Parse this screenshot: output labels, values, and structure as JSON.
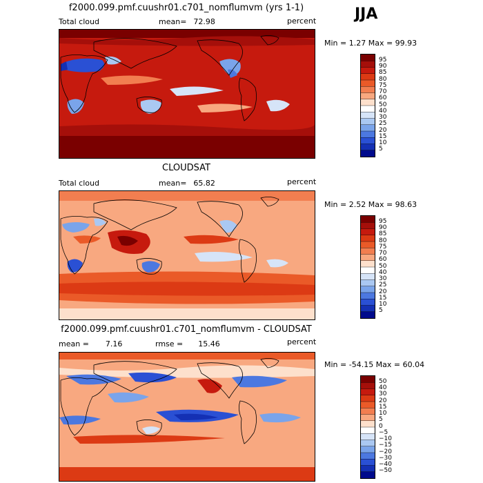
{
  "season": "JJA",
  "panels": [
    {
      "title": "f2000.099.pmf.cuushr01.c701_nomflumvm (yrs 1-1)",
      "left_label": "Total cloud",
      "stat_label": "mean=",
      "stat_value": "72.98",
      "units": "percent",
      "minmax": "Min =    1.27 Max =   99.93",
      "colorbar_labels": [
        "95",
        "90",
        "85",
        "80",
        "75",
        "70",
        "60",
        "50",
        "40",
        "30",
        "25",
        "20",
        "15",
        "10",
        "5"
      ],
      "colorbar_colors": [
        "#7a0000",
        "#a50f0a",
        "#c61a0e",
        "#dc3a14",
        "#ea5a28",
        "#f27e50",
        "#f8a880",
        "#fde0cc",
        "#ffffff",
        "#d6e4f8",
        "#aac8f2",
        "#7aa4ea",
        "#4c78e0",
        "#2a50d4",
        "#1430b4",
        "#000a8c"
      ]
    },
    {
      "title": "CLOUDSAT",
      "left_label": "Total cloud",
      "stat_label": "mean=",
      "stat_value": "65.82",
      "units": "percent",
      "minmax": "Min =    2.52 Max =   98.63",
      "colorbar_labels": [
        "95",
        "90",
        "85",
        "80",
        "75",
        "70",
        "60",
        "50",
        "40",
        "30",
        "25",
        "20",
        "15",
        "10",
        "5"
      ],
      "colorbar_colors": [
        "#7a0000",
        "#a50f0a",
        "#c61a0e",
        "#dc3a14",
        "#ea5a28",
        "#f27e50",
        "#f8a880",
        "#fde0cc",
        "#ffffff",
        "#d6e4f8",
        "#aac8f2",
        "#7aa4ea",
        "#4c78e0",
        "#2a50d4",
        "#1430b4",
        "#000a8c"
      ]
    },
    {
      "title": "f2000.099.pmf.cuushr01.c701_nomflumvm - CLOUDSAT",
      "left_label": "mean =",
      "left_value": "7.16",
      "stat_label": "rmse =",
      "stat_value": "15.46",
      "units": "percent",
      "minmax": "Min = -54.15 Max =   60.04",
      "colorbar_labels": [
        "50",
        "40",
        "30",
        "20",
        "15",
        "10",
        "5",
        "0",
        "−5",
        "−10",
        "−15",
        "−20",
        "−30",
        "−40",
        "−50"
      ],
      "colorbar_colors": [
        "#7a0000",
        "#a50f0a",
        "#c61a0e",
        "#dc3a14",
        "#ea5a28",
        "#f27e50",
        "#f8a880",
        "#fde0cc",
        "#ffffff",
        "#d6e4f8",
        "#aac8f2",
        "#7aa4ea",
        "#4c78e0",
        "#2a50d4",
        "#1430b4",
        "#000a8c"
      ]
    }
  ]
}
